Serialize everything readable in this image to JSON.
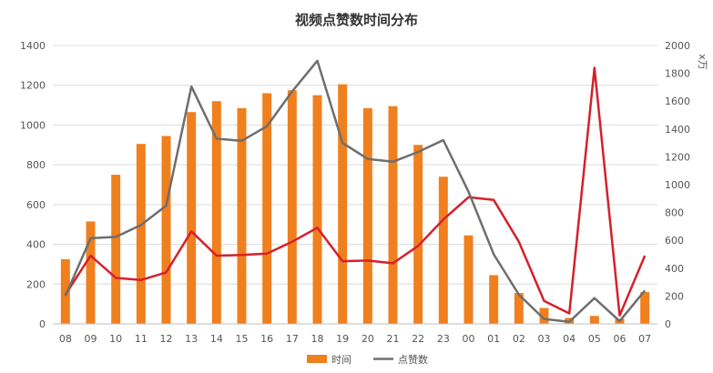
{
  "chart_data": {
    "type": "bar",
    "title": "视频点赞数时间分布",
    "categories": [
      "08",
      "09",
      "10",
      "11",
      "12",
      "13",
      "14",
      "15",
      "16",
      "17",
      "18",
      "19",
      "20",
      "21",
      "22",
      "23",
      "00",
      "01",
      "02",
      "03",
      "04",
      "05",
      "06",
      "07"
    ],
    "series": [
      {
        "name": "时间",
        "type": "bar",
        "axis": "left",
        "color": "#f07f1e",
        "values": [
          325,
          515,
          750,
          905,
          945,
          1065,
          1120,
          1085,
          1160,
          1175,
          1150,
          1205,
          1085,
          1095,
          900,
          740,
          445,
          245,
          155,
          80,
          30,
          40,
          25,
          160
        ]
      },
      {
        "name": "",
        "type": "line",
        "axis": "right",
        "color": "#d6202a",
        "values": [
          210,
          490,
          330,
          315,
          370,
          665,
          490,
          495,
          505,
          590,
          690,
          450,
          455,
          435,
          560,
          750,
          910,
          890,
          590,
          165,
          75,
          1840,
          60,
          490
        ]
      },
      {
        "name": "点赞数",
        "type": "line",
        "axis": "right",
        "color": "#6e6e6e",
        "values": [
          200,
          615,
          625,
          710,
          850,
          1705,
          1330,
          1315,
          1420,
          1670,
          1890,
          1300,
          1185,
          1165,
          1235,
          1320,
          950,
          500,
          210,
          35,
          15,
          185,
          20,
          240
        ]
      }
    ],
    "y_left": {
      "min": 0,
      "max": 1400,
      "ticks": [
        "0",
        "200",
        "400",
        "600",
        "800",
        "1000",
        "1200",
        "1400"
      ]
    },
    "y_right": {
      "min": 0,
      "max": 2000,
      "ticks": [
        "0",
        "200",
        "400",
        "600",
        "800",
        "1000",
        "1200",
        "1400",
        "1600",
        "1800",
        "2000"
      ],
      "unit_label": "x万"
    },
    "legend": {
      "position": "bottom",
      "items": [
        "时间",
        "点赞数"
      ]
    },
    "grid": true
  }
}
